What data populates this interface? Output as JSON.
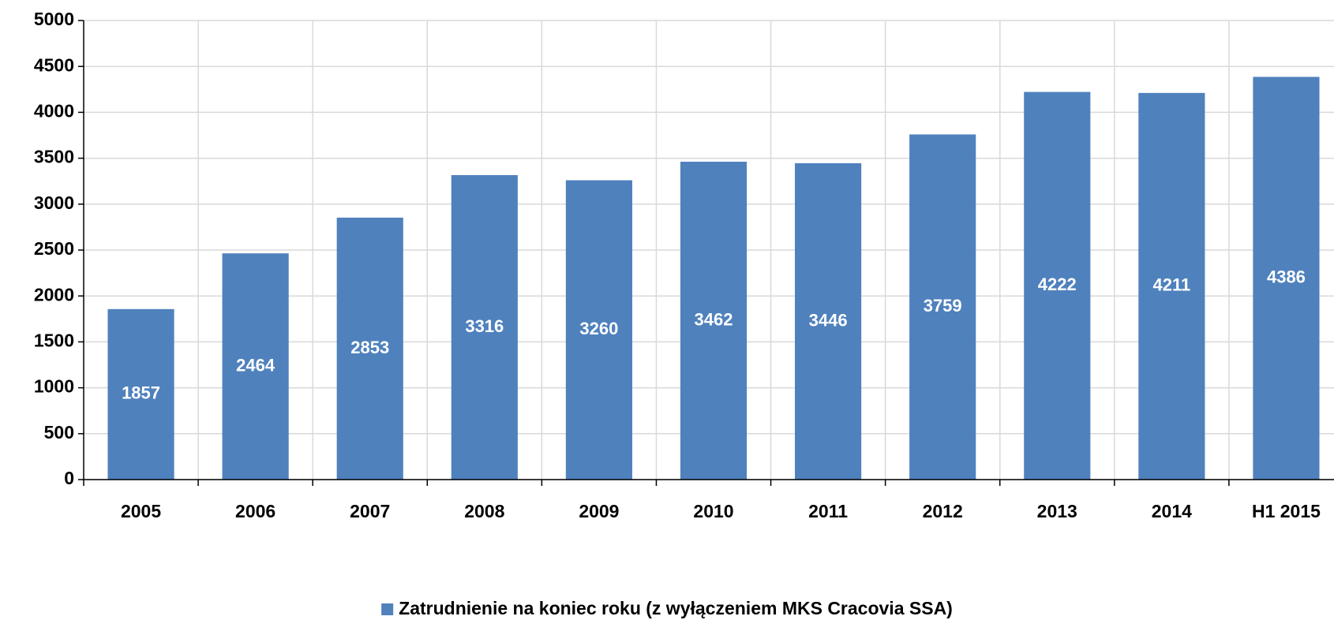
{
  "chart_data": {
    "type": "bar",
    "categories": [
      "2005",
      "2006",
      "2007",
      "2008",
      "2009",
      "2010",
      "2011",
      "2012",
      "2013",
      "2014",
      "H1 2015"
    ],
    "series": [
      {
        "name": "Zatrudnienie na koniec roku (z wyłączeniem MKS Cracovia SSA)",
        "color": "#4f81bd",
        "values": [
          1857,
          2464,
          2853,
          3316,
          3260,
          3462,
          3446,
          3759,
          4222,
          4211,
          4386
        ]
      }
    ],
    "ylim": [
      0,
      5000
    ],
    "yticks": [
      0,
      500,
      1000,
      1500,
      2000,
      2500,
      3000,
      3500,
      4000,
      4500,
      5000
    ],
    "grid": true,
    "legend": "bottom"
  }
}
